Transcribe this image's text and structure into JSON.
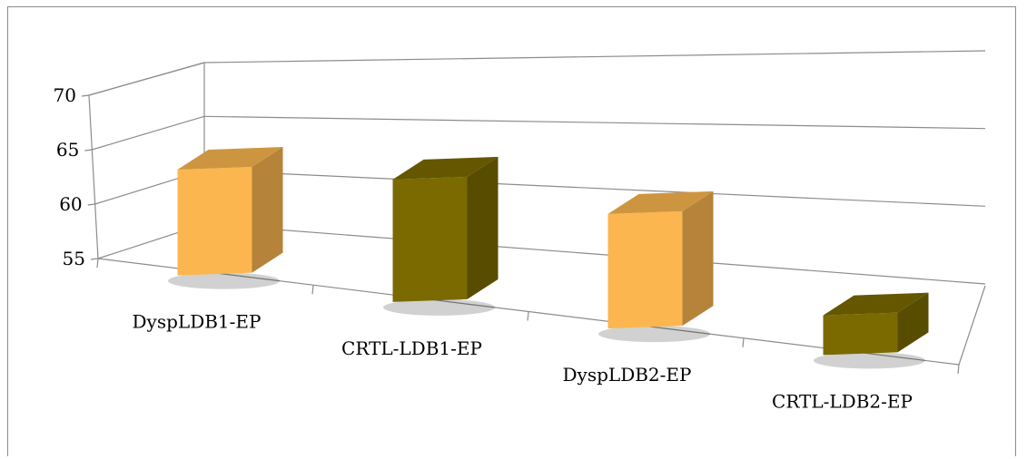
{
  "chart_data": {
    "type": "bar",
    "style": "3d-perspective",
    "categories": [
      "DyspLDB1-EP",
      "CRTL-LDB1-EP",
      "DyspLDB2-EP",
      "CRTL-LDB2-EP"
    ],
    "values": [
      64,
      65,
      64,
      58
    ],
    "bar_colors": [
      "#fbb64f",
      "#7a6a00",
      "#fbb64f",
      "#7a6a00"
    ],
    "y_ticks": [
      "55",
      "60",
      "65",
      "70"
    ],
    "ylim": [
      55,
      70
    ],
    "grid": true,
    "legend": "none",
    "title": "",
    "xlabel": "",
    "ylabel": ""
  }
}
